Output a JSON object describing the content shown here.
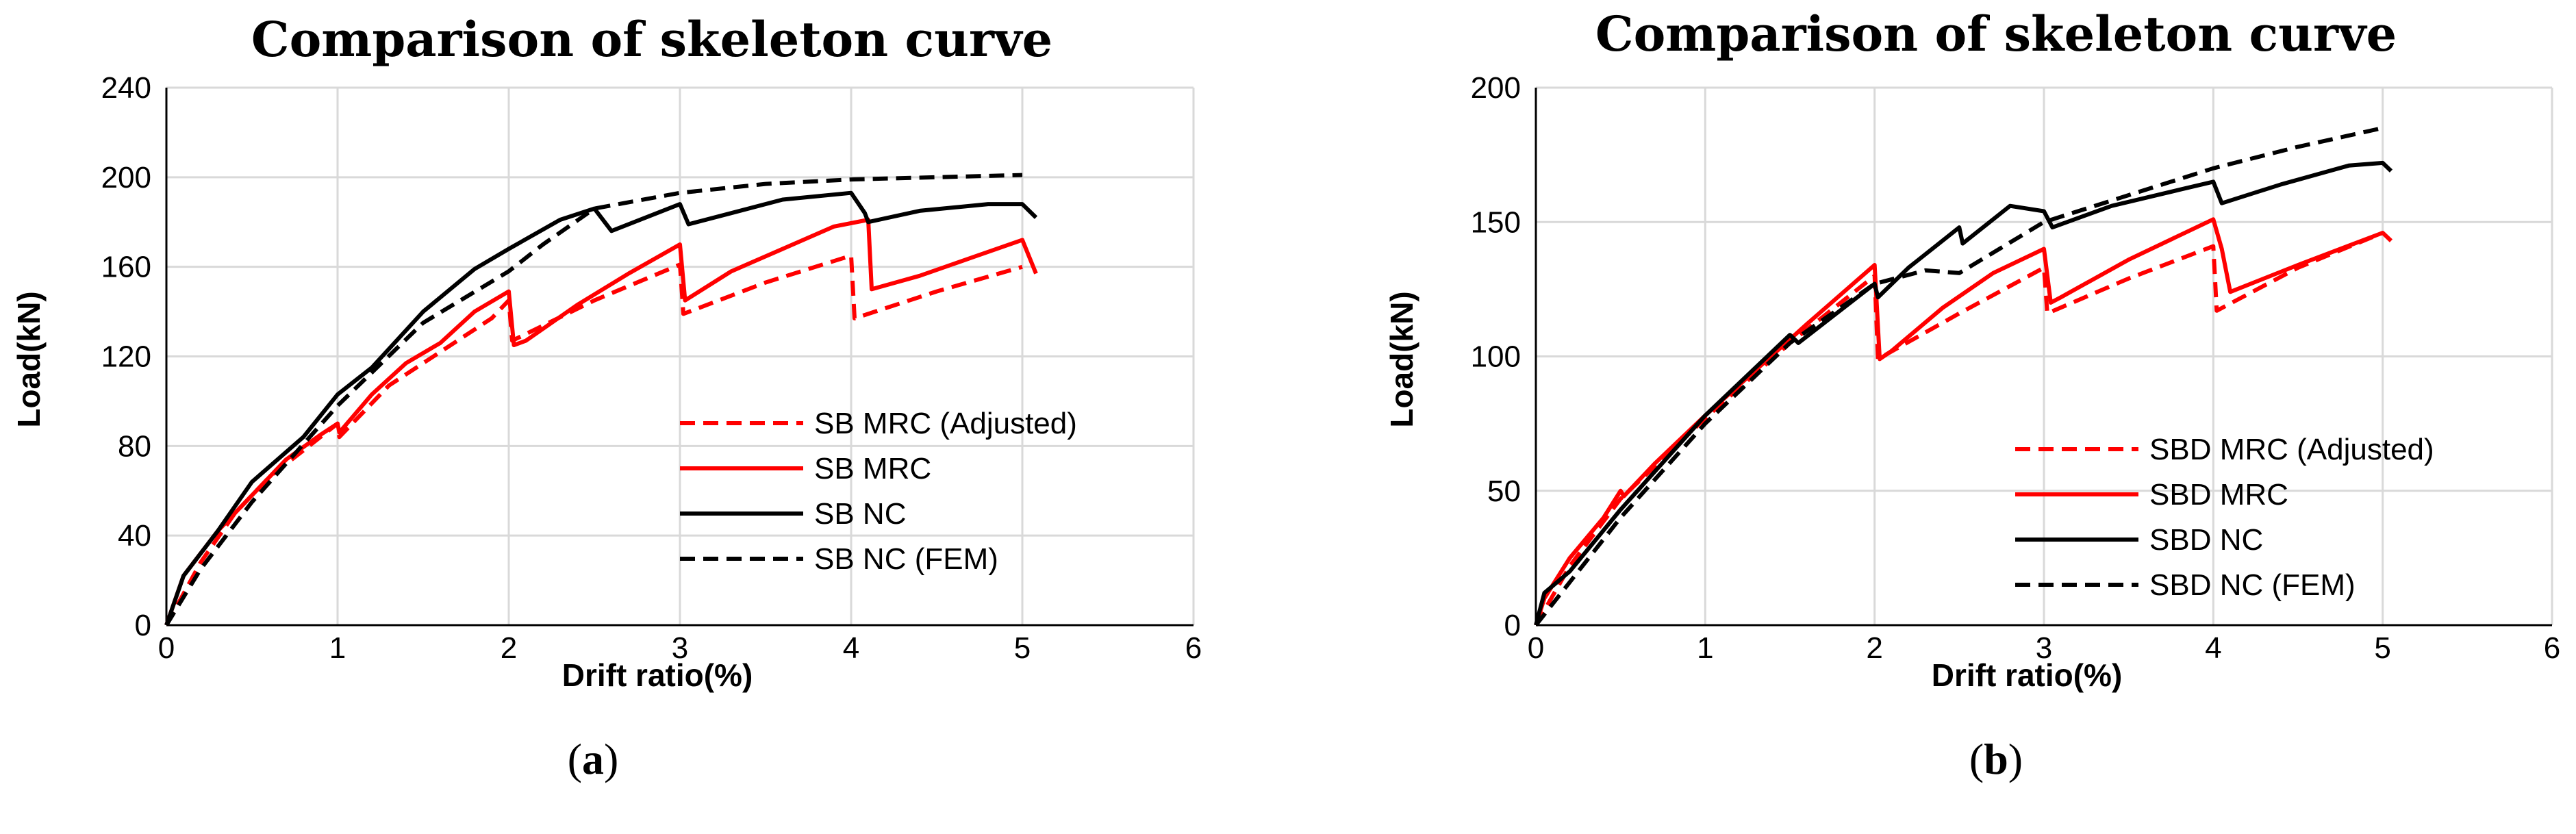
{
  "colors": {
    "red": "#ff0000",
    "black": "#000000",
    "grid": "#d9d9d9",
    "frame": "#000000"
  },
  "chart_data": [
    {
      "type": "line",
      "caption": "a",
      "title": "Comparison of skeleton curve",
      "xlabel": "Drift ratio(%)",
      "ylabel": "Load(kN)",
      "xlim": [
        0,
        6
      ],
      "ylim": [
        0,
        240
      ],
      "xticks": [
        "0",
        "1",
        "2",
        "3",
        "4",
        "5",
        "6"
      ],
      "yticks": [
        "0",
        "40",
        "80",
        "120",
        "160",
        "200",
        "240"
      ],
      "grid": true,
      "legend_position": "bottom-right",
      "series": [
        {
          "name": "SB MRC (Adjusted)",
          "color": "#ff0000",
          "dash": true,
          "x": [
            0,
            0.2,
            0.4,
            0.6,
            0.8,
            1.0,
            1.01,
            1.3,
            1.6,
            1.9,
            2.0,
            2.02,
            2.5,
            3.0,
            3.02,
            3.5,
            4.0,
            4.02,
            4.5,
            5.0
          ],
          "y": [
            0,
            28,
            50,
            66,
            78,
            90,
            84,
            107,
            122,
            137,
            145,
            127,
            145,
            161,
            139,
            153,
            165,
            137,
            149,
            160
          ]
        },
        {
          "name": "SB MRC",
          "color": "#ff0000",
          "dash": false,
          "x": [
            0,
            0.1,
            0.3,
            0.5,
            0.7,
            0.9,
            1.0,
            1.01,
            1.2,
            1.4,
            1.6,
            1.8,
            2.0,
            2.03,
            2.1,
            2.4,
            2.7,
            3.0,
            3.03,
            3.3,
            3.6,
            3.9,
            4.1,
            4.12,
            4.4,
            4.7,
            5.0,
            5.08
          ],
          "y": [
            0,
            22,
            42,
            58,
            74,
            85,
            90,
            86,
            103,
            117,
            126,
            140,
            149,
            125,
            127,
            143,
            157,
            170,
            145,
            158,
            168,
            178,
            181,
            150,
            156,
            164,
            172,
            157
          ]
        },
        {
          "name": "SB NC",
          "color": "#000000",
          "dash": false,
          "x": [
            0,
            0.1,
            0.3,
            0.5,
            0.8,
            1.0,
            1.2,
            1.5,
            1.8,
            2.0,
            2.3,
            2.5,
            2.6,
            2.8,
            3.0,
            3.05,
            3.3,
            3.6,
            4.0,
            4.08,
            4.1,
            4.4,
            4.8,
            5.0,
            5.08
          ],
          "y": [
            0,
            22,
            42,
            64,
            84,
            103,
            115,
            140,
            159,
            168,
            181,
            186,
            176,
            182,
            188,
            179,
            184,
            190,
            193,
            184,
            180,
            185,
            188,
            188,
            182
          ]
        },
        {
          "name": "SB NC (FEM)",
          "color": "#000000",
          "dash": true,
          "x": [
            0,
            0.2,
            0.5,
            1.0,
            1.5,
            2.0,
            2.2,
            2.5,
            3.0,
            3.5,
            4.0,
            4.5,
            5.0
          ],
          "y": [
            0,
            25,
            55,
            98,
            135,
            158,
            170,
            186,
            193,
            197,
            199,
            200,
            201
          ]
        }
      ]
    },
    {
      "type": "line",
      "caption": "b",
      "title": "Comparison of skeleton curve",
      "xlabel": "Drift ratio(%)",
      "ylabel": "Load(kN)",
      "xlim": [
        0,
        6
      ],
      "ylim": [
        0,
        200
      ],
      "xticks": [
        "0",
        "1",
        "2",
        "3",
        "4",
        "5",
        "6"
      ],
      "yticks": [
        "0",
        "50",
        "100",
        "150",
        "200"
      ],
      "grid": true,
      "legend_position": "bottom-right",
      "series": [
        {
          "name": "SBD MRC (Adjusted)",
          "color": "#ff0000",
          "dash": true,
          "x": [
            0,
            0.2,
            0.5,
            1.0,
            1.5,
            2.0,
            2.02,
            2.5,
            3.0,
            3.02,
            3.5,
            4.0,
            4.02,
            4.5,
            5.0
          ],
          "y": [
            0,
            22,
            47,
            77,
            105,
            130,
            99,
            116,
            133,
            116,
            129,
            141,
            117,
            133,
            146
          ]
        },
        {
          "name": "SBD MRC",
          "color": "#ff0000",
          "dash": false,
          "x": [
            0,
            0.05,
            0.2,
            0.4,
            0.5,
            0.52,
            0.7,
            1.0,
            1.3,
            1.6,
            2.0,
            2.03,
            2.1,
            2.4,
            2.7,
            3.0,
            3.04,
            3.1,
            3.5,
            4.0,
            4.05,
            4.1,
            4.5,
            5.0,
            5.05
          ],
          "y": [
            0,
            10,
            25,
            40,
            50,
            48,
            60,
            78,
            95,
            112,
            134,
            99,
            102,
            118,
            131,
            140,
            120,
            122,
            136,
            151,
            140,
            124,
            134,
            146,
            143
          ]
        },
        {
          "name": "SBD NC",
          "color": "#000000",
          "dash": false,
          "x": [
            0,
            0.05,
            0.2,
            0.5,
            1.0,
            1.5,
            1.55,
            2.0,
            2.02,
            2.2,
            2.5,
            2.52,
            2.8,
            3.0,
            3.05,
            3.4,
            3.8,
            4.0,
            4.05,
            4.4,
            4.8,
            5.0,
            5.05
          ],
          "y": [
            0,
            12,
            20,
            43,
            78,
            108,
            105,
            127,
            122,
            133,
            148,
            142,
            156,
            154,
            148,
            156,
            162,
            165,
            157,
            164,
            171,
            172,
            169
          ]
        },
        {
          "name": "SBD NC (FEM)",
          "color": "#000000",
          "dash": true,
          "x": [
            0,
            0.5,
            1.0,
            1.5,
            2.0,
            2.3,
            2.5,
            3.0,
            3.5,
            4.0,
            4.5,
            5.0
          ],
          "y": [
            0,
            40,
            75,
            105,
            127,
            132,
            131,
            150,
            160,
            170,
            178,
            185
          ]
        }
      ]
    }
  ]
}
